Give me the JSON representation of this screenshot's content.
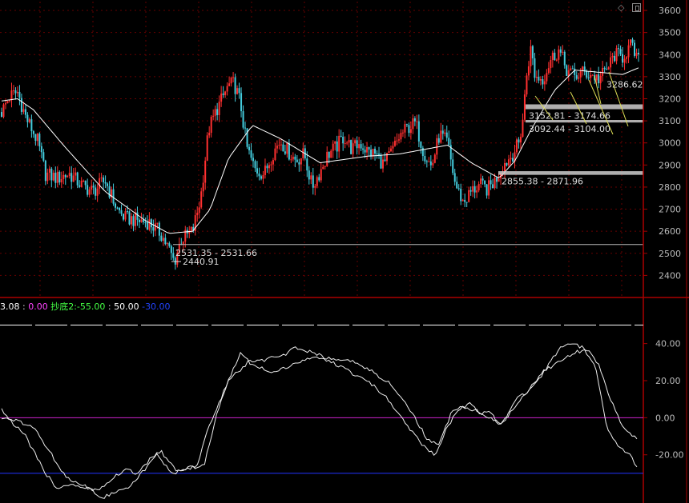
{
  "toolbar_icons": [
    "diamond-icon",
    "window-icon"
  ],
  "colors": {
    "background": "#000000",
    "axis": "#aa0000",
    "grid": "#660000",
    "candle_up": "#ff3030",
    "candle_down": "#44ccdd",
    "ma_line": "#ffffff",
    "zone": "#cccccc",
    "line_zero": "#cc22cc",
    "line_minus30": "#2233ff",
    "line_50": "#ffffff",
    "ind_text": "#ffffff",
    "ind_v0": "#ff44ff",
    "ind_name": "#44ff44",
    "ind_minus30": "#2244ff"
  },
  "indicator": {
    "v1": "3.08",
    "v0": "0.00",
    "name": "抄底2:",
    "v_m55": "-55.00",
    "v50": "50.00",
    "v_m30": "-30.00"
  },
  "chart_data": [
    {
      "type": "candlestick",
      "y_ticks": [
        "3600",
        "3500",
        "3400",
        "3300",
        "3200",
        "3100",
        "3000",
        "2900",
        "2800",
        "2700",
        "2600",
        "2500",
        "2400"
      ],
      "ylim": [
        2300,
        3640
      ],
      "grid": true,
      "n_bars": 320,
      "anchors": [
        [
          0,
          3140
        ],
        [
          10,
          3210
        ],
        [
          20,
          3230
        ],
        [
          30,
          3120
        ],
        [
          45,
          3010
        ],
        [
          55,
          2860
        ],
        [
          70,
          2840
        ],
        [
          85,
          2860
        ],
        [
          100,
          2810
        ],
        [
          115,
          2780
        ],
        [
          130,
          2830
        ],
        [
          145,
          2700
        ],
        [
          155,
          2660
        ],
        [
          170,
          2650
        ],
        [
          185,
          2640
        ],
        [
          200,
          2590
        ],
        [
          210,
          2520
        ],
        [
          217,
          2460
        ],
        [
          225,
          2560
        ],
        [
          240,
          2600
        ],
        [
          250,
          2750
        ],
        [
          260,
          3060
        ],
        [
          270,
          3150
        ],
        [
          285,
          3260
        ],
        [
          292,
          3270
        ],
        [
          300,
          3180
        ],
        [
          308,
          2980
        ],
        [
          318,
          2880
        ],
        [
          330,
          2860
        ],
        [
          340,
          2950
        ],
        [
          350,
          3010
        ],
        [
          360,
          2960
        ],
        [
          370,
          2920
        ],
        [
          380,
          2950
        ],
        [
          390,
          2800
        ],
        [
          400,
          2870
        ],
        [
          410,
          2950
        ],
        [
          420,
          2980
        ],
        [
          430,
          3030
        ],
        [
          440,
          2970
        ],
        [
          450,
          3000
        ],
        [
          460,
          2960
        ],
        [
          470,
          2950
        ],
        [
          480,
          2900
        ],
        [
          490,
          2960
        ],
        [
          500,
          3030
        ],
        [
          510,
          3070
        ],
        [
          520,
          3090
        ],
        [
          530,
          2960
        ],
        [
          540,
          2890
        ],
        [
          550,
          3040
        ],
        [
          560,
          3000
        ],
        [
          570,
          2810
        ],
        [
          580,
          2730
        ],
        [
          590,
          2780
        ],
        [
          600,
          2810
        ],
        [
          610,
          2790
        ],
        [
          620,
          2830
        ],
        [
          630,
          2900
        ],
        [
          640,
          2940
        ],
        [
          650,
          3000
        ],
        [
          655,
          3120
        ],
        [
          660,
          3330
        ],
        [
          665,
          3430
        ],
        [
          670,
          3300
        ],
        [
          680,
          3290
        ],
        [
          690,
          3380
        ],
        [
          700,
          3420
        ],
        [
          710,
          3330
        ],
        [
          720,
          3300
        ],
        [
          730,
          3320
        ],
        [
          740,
          3310
        ],
        [
          750,
          3290
        ],
        [
          760,
          3330
        ],
        [
          770,
          3400
        ],
        [
          780,
          3390
        ],
        [
          790,
          3440
        ],
        [
          800,
          3370
        ]
      ],
      "ma_anchors": [
        [
          0,
          3190
        ],
        [
          20,
          3200
        ],
        [
          40,
          3150
        ],
        [
          80,
          2980
        ],
        [
          130,
          2780
        ],
        [
          180,
          2650
        ],
        [
          210,
          2590
        ],
        [
          240,
          2600
        ],
        [
          262,
          2700
        ],
        [
          285,
          2930
        ],
        [
          315,
          3080
        ],
        [
          350,
          3020
        ],
        [
          400,
          2910
        ],
        [
          460,
          2940
        ],
        [
          500,
          2950
        ],
        [
          530,
          2970
        ],
        [
          560,
          2990
        ],
        [
          590,
          2910
        ],
        [
          625,
          2840
        ],
        [
          645,
          2920
        ],
        [
          665,
          3060
        ],
        [
          695,
          3240
        ],
        [
          720,
          3330
        ],
        [
          750,
          3320
        ],
        [
          780,
          3310
        ],
        [
          800,
          3340
        ]
      ],
      "zones": [
        {
          "label": "3152.81 - 3174.66",
          "low": 3152.81,
          "high": 3174.66
        },
        {
          "label": "3092.44 - 3104.00",
          "low": 3092.44,
          "high": 3104.0
        },
        {
          "label": "2855.38 - 2871.96",
          "low": 2855.38,
          "high": 2871.96
        }
      ],
      "level_line": {
        "value": 2540
      },
      "annotations": [
        {
          "text": "2531.35 - 2531.66",
          "price": 2531.5
        },
        {
          "text": "2440.91",
          "price": 2440.91
        },
        {
          "text": "3286.62",
          "price": 3286.62
        }
      ]
    },
    {
      "type": "line",
      "y_ticks": [
        "40.00",
        "20.00",
        "0.00",
        "-20.00"
      ],
      "ylim": [
        -46,
        64
      ],
      "reference_lines": [
        {
          "value": 50,
          "label": "50.00",
          "dashed": true
        },
        {
          "value": 0,
          "label": "0.00"
        },
        {
          "value": -30,
          "label": "-30.00"
        }
      ],
      "series": [
        {
          "values": [
            [
              0,
              0
            ],
            [
              20,
              -2
            ],
            [
              40,
              -5
            ],
            [
              60,
              -18
            ],
            [
              80,
              -32
            ],
            [
              100,
              -36
            ],
            [
              115,
              -39
            ],
            [
              125,
              -44
            ],
            [
              140,
              -40
            ],
            [
              160,
              -37
            ],
            [
              180,
              -28
            ],
            [
              195,
              -20
            ],
            [
              215,
              -30
            ],
            [
              240,
              -27
            ],
            [
              255,
              -25
            ],
            [
              270,
              2
            ],
            [
              285,
              20
            ],
            [
              300,
              35
            ],
            [
              315,
              28
            ],
            [
              340,
              25
            ],
            [
              365,
              28
            ],
            [
              390,
              33
            ],
            [
              415,
              30
            ],
            [
              440,
              24
            ],
            [
              460,
              20
            ],
            [
              485,
              10
            ],
            [
              510,
              -5
            ],
            [
              530,
              -15
            ],
            [
              545,
              -20
            ],
            [
              560,
              -5
            ],
            [
              575,
              5
            ],
            [
              590,
              8
            ],
            [
              600,
              2
            ],
            [
              615,
              3
            ],
            [
              625,
              -5
            ],
            [
              640,
              3
            ],
            [
              660,
              14
            ],
            [
              680,
              25
            ],
            [
              700,
              30
            ],
            [
              720,
              35
            ],
            [
              735,
              37
            ],
            [
              750,
              28
            ],
            [
              765,
              10
            ],
            [
              780,
              -5
            ],
            [
              800,
              -12
            ]
          ]
        },
        {
          "values": [
            [
              0,
              5
            ],
            [
              10,
              -1
            ],
            [
              30,
              -10
            ],
            [
              55,
              -30
            ],
            [
              70,
              -38
            ],
            [
              85,
              -36
            ],
            [
              100,
              -38
            ],
            [
              120,
              -39
            ],
            [
              135,
              -34
            ],
            [
              155,
              -28
            ],
            [
              170,
              -30
            ],
            [
              185,
              -23
            ],
            [
              200,
              -18
            ],
            [
              220,
              -29
            ],
            [
              245,
              -26
            ],
            [
              260,
              -5
            ],
            [
              285,
              20
            ],
            [
              310,
              30
            ],
            [
              330,
              31
            ],
            [
              355,
              34
            ],
            [
              370,
              38
            ],
            [
              390,
              35
            ],
            [
              410,
              32
            ],
            [
              425,
              31
            ],
            [
              445,
              30
            ],
            [
              465,
              25
            ],
            [
              490,
              18
            ],
            [
              515,
              3
            ],
            [
              535,
              -12
            ],
            [
              550,
              -14
            ],
            [
              565,
              3
            ],
            [
              580,
              6
            ],
            [
              600,
              3
            ],
            [
              615,
              0
            ],
            [
              630,
              -3
            ],
            [
              645,
              10
            ],
            [
              665,
              15
            ],
            [
              685,
              27
            ],
            [
              700,
              37
            ],
            [
              715,
              40
            ],
            [
              730,
              38
            ],
            [
              745,
              29
            ],
            [
              760,
              -5
            ],
            [
              775,
              -15
            ],
            [
              790,
              -20
            ],
            [
              800,
              -28
            ]
          ]
        }
      ]
    }
  ]
}
